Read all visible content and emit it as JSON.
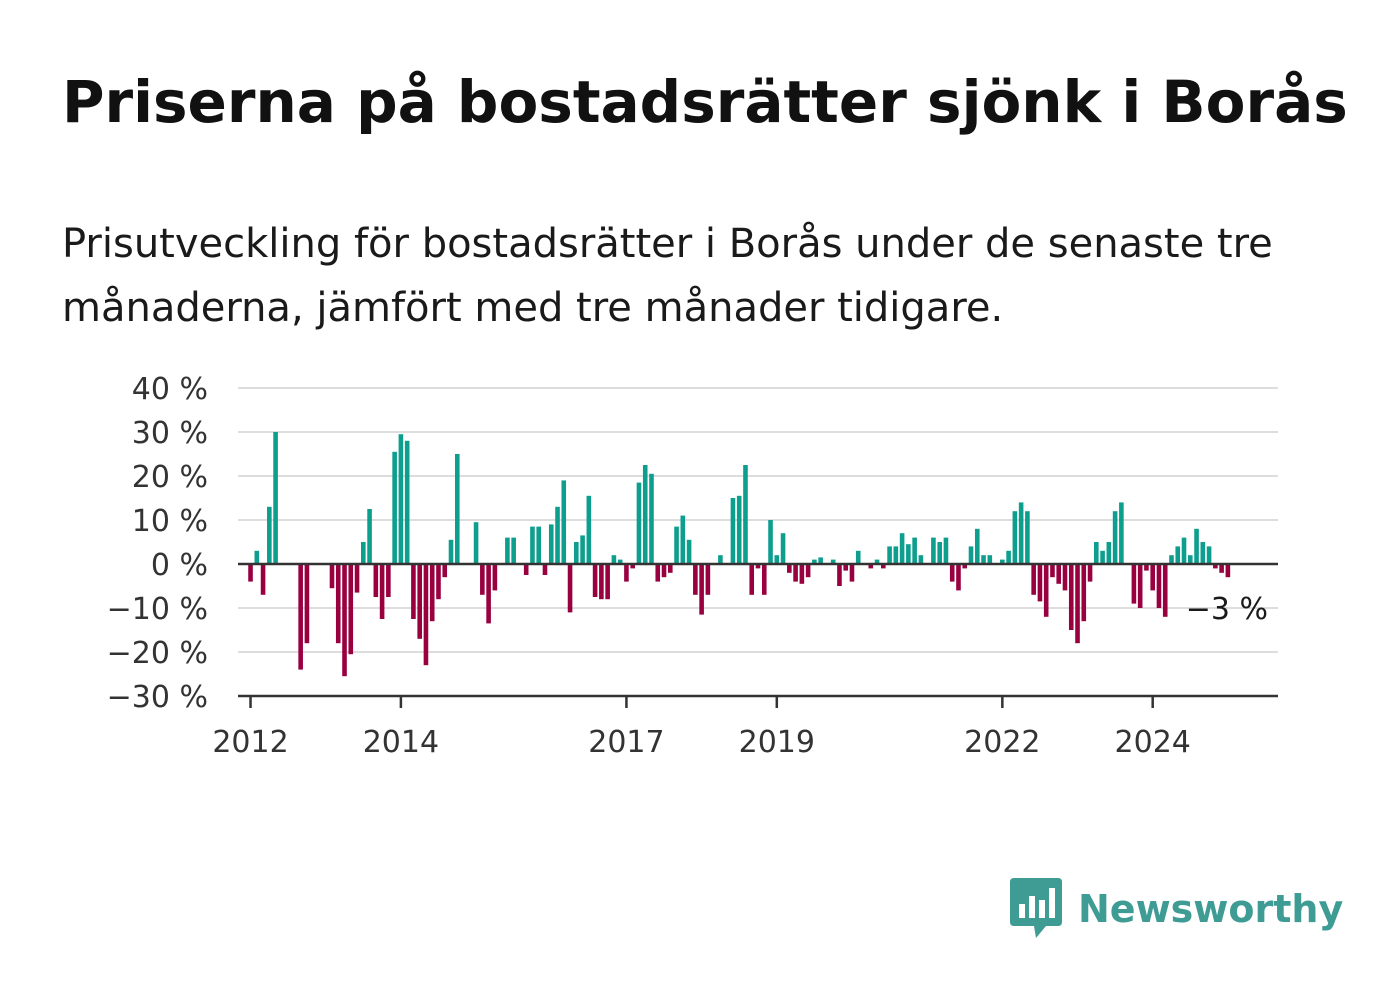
{
  "title": "Priserna på bostadsrätter sjönk i Borås",
  "subtitle": "Prisutveckling för bostadsrätter i Borås under de senaste tre månaderna, jämfört med tre månader tidigare.",
  "brand": {
    "name": "Newsworthy"
  },
  "colors": {
    "positive": "#0e9e8e",
    "negative": "#990040",
    "grid": "#dddddd",
    "axis": "#333333",
    "brand": "#3e9c94"
  },
  "chart_data": {
    "type": "bar",
    "title": "Priserna på bostadsrätter sjönk i Borås",
    "xlabel": "",
    "ylabel": "",
    "y_unit": "%",
    "ylim": [
      -30,
      40
    ],
    "y_ticks": [
      {
        "value": 40,
        "label": "40 %"
      },
      {
        "value": 30,
        "label": "30 %"
      },
      {
        "value": 20,
        "label": "20 %"
      },
      {
        "value": 10,
        "label": "10 %"
      },
      {
        "value": 0,
        "label": "0 %"
      },
      {
        "value": -10,
        "label": "−10 %"
      },
      {
        "value": -20,
        "label": "−20 %"
      },
      {
        "value": -30,
        "label": "−30 %"
      }
    ],
    "x_range": [
      "2011-11",
      "2025-09"
    ],
    "x_ticks": [
      {
        "value": "2012-01",
        "label": "2012"
      },
      {
        "value": "2014-01",
        "label": "2014"
      },
      {
        "value": "2017-01",
        "label": "2017"
      },
      {
        "value": "2019-01",
        "label": "2019"
      },
      {
        "value": "2022-01",
        "label": "2022"
      },
      {
        "value": "2024-01",
        "label": "2024"
      }
    ],
    "grid": true,
    "last_value_label": "−3 %",
    "series": [
      {
        "start": "2012-01",
        "values": [
          -4,
          3,
          -7,
          13,
          30,
          0,
          0,
          0,
          -24,
          -18,
          0,
          0,
          0,
          -5.5,
          -18,
          -25.5,
          -20.5,
          -6.5,
          5,
          12.5,
          -7.5,
          -12.5,
          -7.5,
          25.5,
          29.5,
          28,
          -12.5,
          -17,
          -23,
          -13,
          -8,
          -3,
          5.5,
          25,
          0,
          0,
          9.5,
          -7,
          -13.5,
          -6,
          0,
          6,
          6,
          0,
          -2.5,
          8.5,
          8.5,
          -2.5,
          9,
          13,
          19,
          -11,
          5,
          6.5,
          15.5,
          -7.5,
          -8,
          -8,
          2,
          1,
          -4,
          -1,
          18.5,
          22.5,
          20.5,
          -4,
          -3,
          -2,
          8.5,
          11,
          5.5,
          -7,
          -11.5,
          -7,
          0,
          2,
          0,
          15,
          15.5,
          22.5,
          -7,
          -1,
          -7,
          10,
          2,
          7,
          -2,
          -4,
          -4.5,
          -3,
          1,
          1.5,
          0,
          1,
          -5,
          -1.5,
          -4,
          3,
          0,
          -1,
          1,
          -1,
          4,
          4,
          7,
          4.5,
          6,
          2,
          0,
          6,
          5,
          6,
          -4,
          -6,
          -1,
          4,
          8,
          2,
          2,
          0,
          1,
          3,
          12,
          14,
          12,
          -7,
          -8.5,
          -12,
          -3,
          -4.5,
          -6,
          -15,
          -18,
          -13,
          -4,
          5,
          3,
          5,
          12,
          14,
          0,
          -9,
          -10,
          -1.5,
          -6,
          -10,
          -12,
          2,
          4,
          6,
          2,
          8,
          5,
          4,
          -1,
          -2,
          -3
        ]
      }
    ]
  }
}
